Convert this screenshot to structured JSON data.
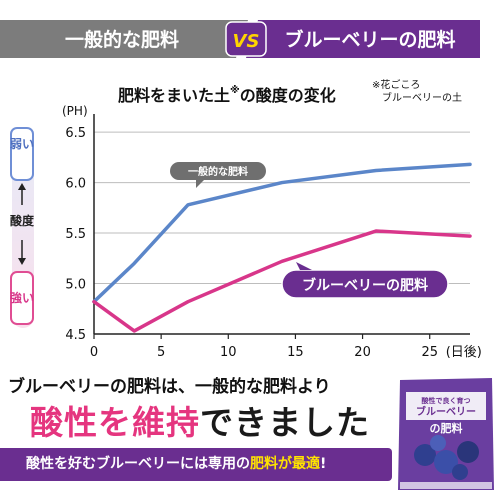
{
  "header": {
    "left_label": "一般的な肥料",
    "vs_label": "VS",
    "right_label": "ブルーベリーの肥料"
  },
  "chart_data": {
    "type": "line",
    "title": "肥料をまいた土",
    "title_mark": "※",
    "title_suffix": "の酸度の変化",
    "note_line1": "※花ごころ",
    "note_line2": "ブルーベリーの土",
    "ylabel": "(PH)",
    "xlabel": "(日後)",
    "xlim": [
      0,
      28
    ],
    "ylim": [
      4.5,
      6.6
    ],
    "x_ticks": [
      0,
      5,
      10,
      15,
      20,
      25
    ],
    "y_ticks": [
      4.5,
      5.0,
      5.5,
      6.0,
      6.5
    ],
    "y_tick_labels": [
      "4.5",
      "5.0",
      "5.5",
      "6.0",
      "6.5"
    ],
    "side_top": "弱い",
    "side_mid": "酸度",
    "side_bottom": "強い",
    "series": [
      {
        "name": "一般的な肥料",
        "color": "#5b86c9",
        "x": [
          0,
          3,
          7,
          14,
          21,
          28
        ],
        "y": [
          4.82,
          5.2,
          5.78,
          6.0,
          6.12,
          6.18
        ]
      },
      {
        "name": "ブルーベリーの肥料",
        "color": "#d8368a",
        "x": [
          0,
          3,
          7,
          14,
          21,
          28
        ],
        "y": [
          4.82,
          4.53,
          4.82,
          5.22,
          5.52,
          5.47
        ]
      }
    ]
  },
  "footer": {
    "line1": "ブルーベリーの肥料は、一般的な肥料より",
    "line2_pink": "酸性を維持",
    "line2_dark": "できました",
    "bar_white": "酸性を好むブルーベリーには専用の",
    "bar_yellow": "肥料が最適",
    "bar_end": "!"
  },
  "product": {
    "top_label": "酸性で良く育つ",
    "name_line1": "ブルーベリー",
    "name_line2": "の肥料"
  },
  "colors": {
    "gray_banner": "#7c7c7c",
    "purple": "#6a2e90",
    "vs_yellow": "#ffd400",
    "blue_line": "#5b86c9",
    "pink_line": "#d8368a",
    "pink_text": "#e5357f"
  }
}
